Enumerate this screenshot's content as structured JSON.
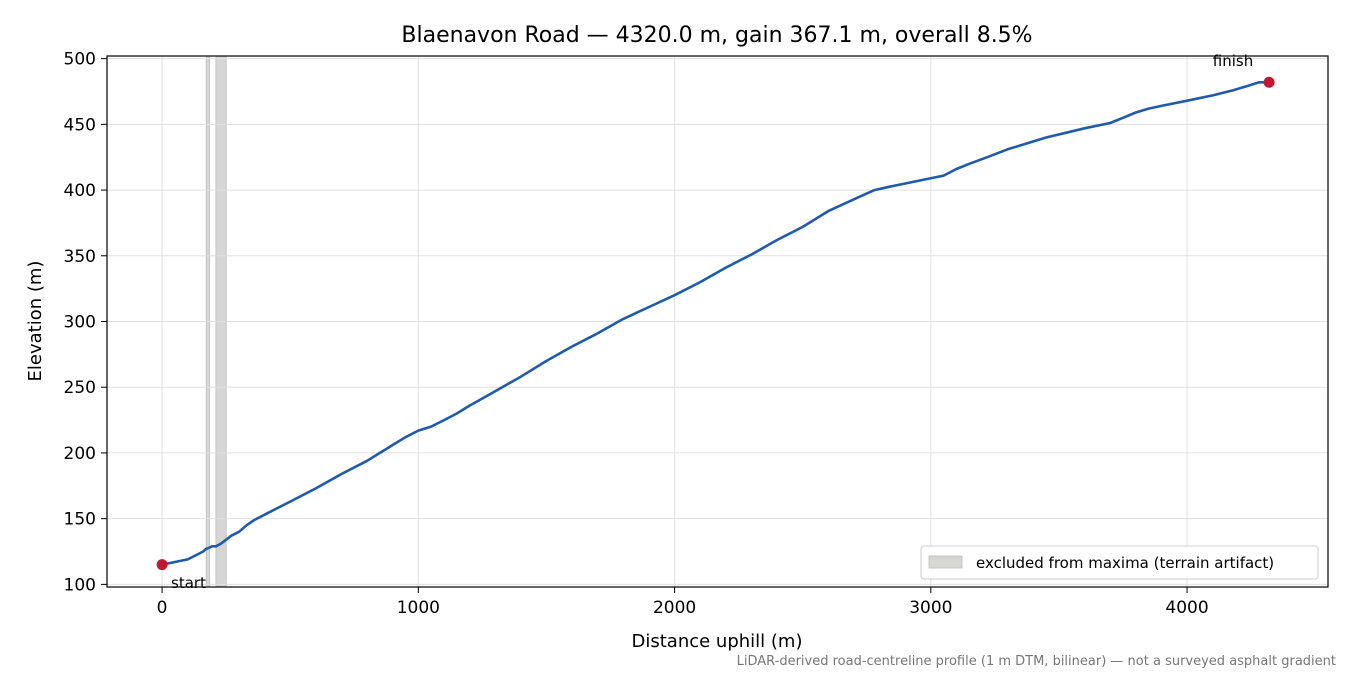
{
  "chart_data": {
    "type": "line",
    "title": "Blaenavon Road — 4320.0 m, gain 367.1 m, overall 8.5%",
    "xlabel": "Distance uphill (m)",
    "ylabel": "Elevation (m)",
    "xlim": [
      -215,
      4550
    ],
    "ylim": [
      98,
      502
    ],
    "xticks": [
      0,
      1000,
      2000,
      3000,
      4000
    ],
    "yticks": [
      100,
      150,
      200,
      250,
      300,
      350,
      400,
      450,
      500
    ],
    "grid": true,
    "legend_position": "lower-right",
    "footnote": "LiDAR-derived road-centreline profile (1 m DTM, bilinear) — not a surveyed asphalt gradient",
    "colors": {
      "profile": "#1f5aad",
      "markers": "#c0182c",
      "excluded_fill": "#d6d6d4"
    },
    "excluded_regions": [
      {
        "x0": 172,
        "x1": 185
      },
      {
        "x0": 210,
        "x1": 250
      }
    ],
    "legend": [
      {
        "label": "excluded from maxima (terrain artifact)",
        "kind": "excluded-region"
      }
    ],
    "series": [
      {
        "x": [
          0,
          50,
          100,
          130,
          160,
          172,
          185,
          195,
          210,
          230,
          250,
          270,
          300,
          330,
          360,
          400,
          450,
          500,
          600,
          700,
          800,
          850,
          900,
          950,
          1000,
          1050,
          1100,
          1150,
          1200,
          1300,
          1400,
          1500,
          1600,
          1700,
          1800,
          1900,
          2000,
          2100,
          2200,
          2300,
          2400,
          2500,
          2600,
          2700,
          2780,
          2850,
          2950,
          3050,
          3100,
          3150,
          3220,
          3300,
          3450,
          3600,
          3700,
          3750,
          3800,
          3850,
          3900,
          4000,
          4100,
          4180,
          4250,
          4280,
          4320
        ],
        "y": [
          115,
          117,
          119,
          122,
          125,
          127,
          128,
          129,
          129,
          131,
          134,
          137,
          140,
          145,
          149,
          153,
          158,
          163,
          173,
          184,
          194,
          200,
          206,
          212,
          217,
          220,
          225,
          230,
          236,
          247,
          258,
          270,
          281,
          291,
          302,
          311,
          320,
          330,
          341,
          351,
          362,
          372,
          384,
          393,
          400,
          403,
          407,
          411,
          416,
          420,
          425,
          431,
          440,
          447,
          451,
          455,
          459,
          462,
          464,
          468,
          472,
          476,
          480,
          482,
          482
        ]
      }
    ],
    "annotations": [
      {
        "text": "start",
        "x": 0,
        "y": 115
      },
      {
        "text": "finish",
        "x": 4320,
        "y": 482
      }
    ]
  }
}
